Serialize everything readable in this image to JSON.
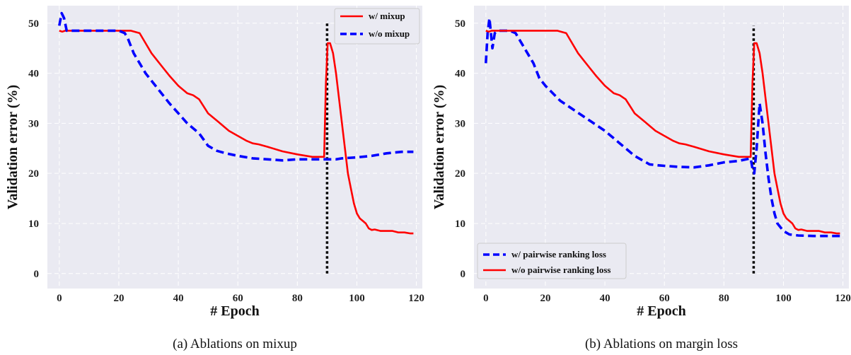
{
  "chart_data": [
    {
      "type": "line",
      "caption": "(a) Ablations on mixup",
      "xlabel": "# Epoch",
      "ylabel": "Validation error (%)",
      "xlim": [
        -4,
        122
      ],
      "ylim": [
        -3,
        53.5
      ],
      "xticks": [
        0,
        20,
        40,
        60,
        80,
        100,
        120
      ],
      "yticks": [
        0,
        10,
        20,
        30,
        40,
        50
      ],
      "grid": true,
      "legend_placement": "top-right",
      "vline": {
        "x": 90,
        "y_from": 0,
        "y_to": 50,
        "style": "dotted",
        "color": "#000000"
      },
      "series": [
        {
          "name": "w/ mixup",
          "color": "#ff0000",
          "style": "solid",
          "x": [
            0,
            1,
            2,
            5,
            10,
            15,
            20,
            24,
            27,
            29,
            31,
            33,
            35,
            37,
            40,
            43,
            45,
            47,
            50,
            53,
            55,
            57,
            60,
            63,
            65,
            67,
            70,
            75,
            80,
            85,
            89,
            89.6,
            90.2,
            91,
            92,
            93,
            94,
            95,
            96,
            97,
            98,
            99,
            100,
            101,
            102,
            103,
            104,
            105,
            106,
            108,
            110,
            112,
            114,
            116,
            118,
            119
          ],
          "y": [
            48.5,
            48.3,
            48.5,
            48.5,
            48.5,
            48.5,
            48.5,
            48.5,
            48,
            46,
            44,
            42.5,
            41,
            39.5,
            37.5,
            36,
            35.6,
            34.8,
            32,
            30.5,
            29.5,
            28.5,
            27.5,
            26.5,
            26,
            25.8,
            25.3,
            24.4,
            23.8,
            23.3,
            23.3,
            38,
            46,
            46,
            44,
            40,
            35,
            30,
            25,
            20,
            17,
            14,
            12,
            11,
            10.5,
            10,
            9,
            8.7,
            8.8,
            8.5,
            8.5,
            8.5,
            8.2,
            8.2,
            8,
            8
          ]
        },
        {
          "name": "w/o mixup",
          "color": "#0000ff",
          "style": "dashed",
          "x": [
            0,
            0.8,
            1.6,
            2.5,
            4,
            8,
            12,
            16,
            20,
            22,
            23,
            25,
            27,
            29,
            31,
            33,
            35,
            37,
            40,
            43,
            45,
            47,
            50,
            53,
            56,
            60,
            65,
            70,
            75,
            80,
            85,
            88,
            90,
            93,
            95,
            100,
            105,
            110,
            115,
            119
          ],
          "y": [
            49.5,
            52,
            51,
            48.5,
            48.5,
            48.5,
            48.5,
            48.5,
            48.5,
            48,
            47,
            44,
            42,
            40,
            38.5,
            37,
            35.5,
            34,
            32,
            30,
            29,
            28,
            25.5,
            24.5,
            24,
            23.5,
            23,
            22.8,
            22.6,
            22.8,
            22.8,
            22.8,
            22.8,
            22.8,
            23,
            23.2,
            23.5,
            24,
            24.3,
            24.3
          ]
        }
      ]
    },
    {
      "type": "line",
      "caption": "(b) Ablations on margin loss",
      "xlabel": "# Epoch",
      "ylabel": "Validation error (%)",
      "xlim": [
        -4,
        122
      ],
      "ylim": [
        -3,
        53.5
      ],
      "xticks": [
        0,
        20,
        40,
        60,
        80,
        100,
        120
      ],
      "yticks": [
        0,
        10,
        20,
        30,
        40,
        50
      ],
      "grid": true,
      "legend_placement": "bottom-left",
      "vline": {
        "x": 90,
        "y_from": 0,
        "y_to": 49.5,
        "style": "dotted",
        "color": "#000000"
      },
      "series": [
        {
          "name": "w/ pairwise ranking loss",
          "color": "#0000ff",
          "style": "dashed",
          "x": [
            0,
            0.6,
            1.2,
            2.2,
            3,
            4,
            6,
            8,
            10,
            12,
            14,
            16,
            18,
            20,
            25,
            30,
            35,
            40,
            45,
            50,
            55,
            58,
            60,
            65,
            70,
            75,
            80,
            85,
            89,
            89.6,
            90.2,
            91,
            92,
            93,
            94,
            95,
            96,
            97,
            98,
            100,
            102,
            105,
            110,
            115,
            119
          ],
          "y": [
            42,
            48,
            51,
            45,
            48,
            48.5,
            48.5,
            48.5,
            48,
            46,
            44,
            42,
            39,
            37.5,
            34.5,
            32.5,
            30.5,
            28.5,
            26,
            23.5,
            21.8,
            21.6,
            21.5,
            21.3,
            21.2,
            21.6,
            22.2,
            22.5,
            23,
            21,
            20,
            25,
            34,
            30,
            24,
            19,
            15,
            12,
            10,
            8.5,
            7.8,
            7.6,
            7.5,
            7.5,
            7.5
          ]
        },
        {
          "name": "w/o pairwise ranking loss",
          "color": "#ff0000",
          "style": "solid",
          "x": [
            0,
            1,
            2,
            5,
            10,
            15,
            20,
            24,
            27,
            29,
            31,
            33,
            35,
            37,
            40,
            43,
            45,
            47,
            50,
            53,
            55,
            57,
            60,
            63,
            65,
            67,
            70,
            75,
            80,
            85,
            89,
            89.6,
            90.2,
            91,
            92,
            93,
            94,
            95,
            96,
            97,
            98,
            99,
            100,
            101,
            102,
            103,
            104,
            105,
            106,
            108,
            110,
            112,
            114,
            116,
            118,
            119
          ],
          "y": [
            48.5,
            48.3,
            48.5,
            48.5,
            48.5,
            48.5,
            48.5,
            48.5,
            48,
            46,
            44,
            42.5,
            41,
            39.5,
            37.5,
            36,
            35.6,
            34.8,
            32,
            30.5,
            29.5,
            28.5,
            27.5,
            26.5,
            26,
            25.8,
            25.3,
            24.4,
            23.8,
            23.3,
            23.3,
            38,
            46,
            46,
            44,
            40,
            35,
            30,
            25,
            20,
            17,
            14,
            12,
            11,
            10.5,
            10,
            9,
            8.7,
            8.8,
            8.5,
            8.5,
            8.5,
            8.2,
            8.2,
            8,
            8
          ]
        }
      ]
    }
  ]
}
